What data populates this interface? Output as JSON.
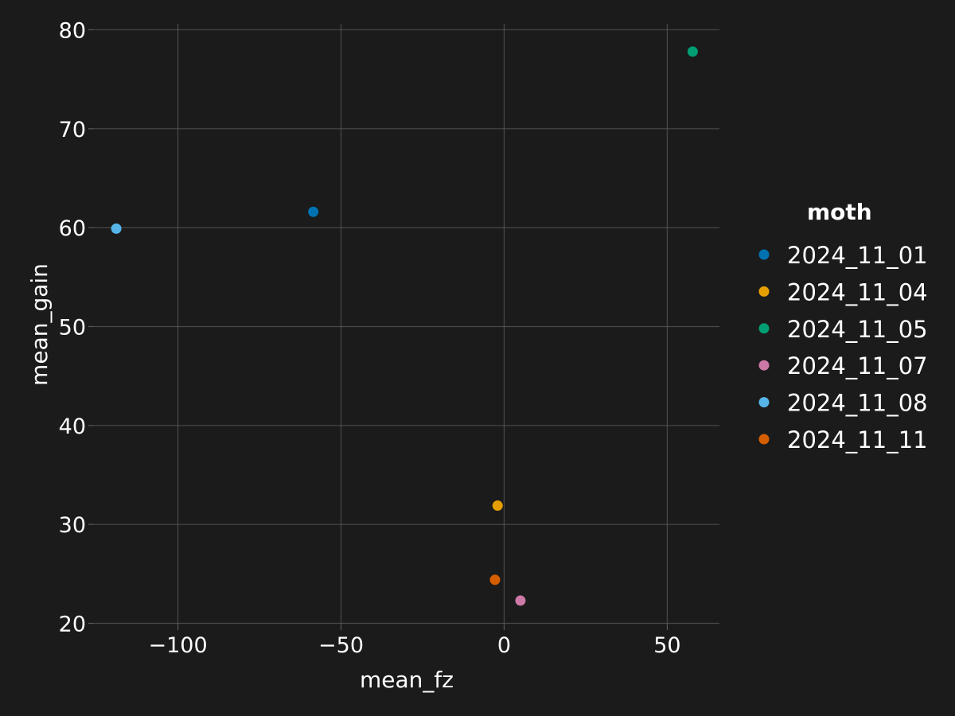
{
  "chart_data": {
    "type": "scatter",
    "title": "",
    "xlabel": "mean_fz",
    "ylabel": "mean_gain",
    "xlim": [
      -126,
      66
    ],
    "ylim": [
      19.8,
      80.6
    ],
    "xticks": [
      -100,
      -50,
      0,
      50
    ],
    "xtick_labels": [
      "−100",
      "−50",
      "0",
      "50"
    ],
    "yticks": [
      20,
      30,
      40,
      50,
      60,
      70,
      80
    ],
    "ytick_labels": [
      "20",
      "30",
      "40",
      "50",
      "60",
      "70",
      "80"
    ],
    "grid": true,
    "legend_title": "moth",
    "legend_position": "right",
    "series": [
      {
        "name": "2024_11_01",
        "color": "#0072b2",
        "points": [
          {
            "x": -58.5,
            "y": 61.6
          }
        ]
      },
      {
        "name": "2024_11_04",
        "color": "#e69f00",
        "points": [
          {
            "x": -2.0,
            "y": 31.9
          }
        ]
      },
      {
        "name": "2024_11_05",
        "color": "#009e73",
        "points": [
          {
            "x": 57.8,
            "y": 77.8
          }
        ]
      },
      {
        "name": "2024_11_07",
        "color": "#cc79a7",
        "points": [
          {
            "x": 5.0,
            "y": 22.3
          }
        ]
      },
      {
        "name": "2024_11_08",
        "color": "#56b4e9",
        "points": [
          {
            "x": -118.9,
            "y": 59.9
          }
        ]
      },
      {
        "name": "2024_11_11",
        "color": "#d55e00",
        "points": [
          {
            "x": -2.8,
            "y": 24.4
          }
        ]
      }
    ]
  },
  "colors": {
    "background": "#1b1b1b",
    "grid": "#5a5a5a",
    "text": "#ffffff"
  }
}
